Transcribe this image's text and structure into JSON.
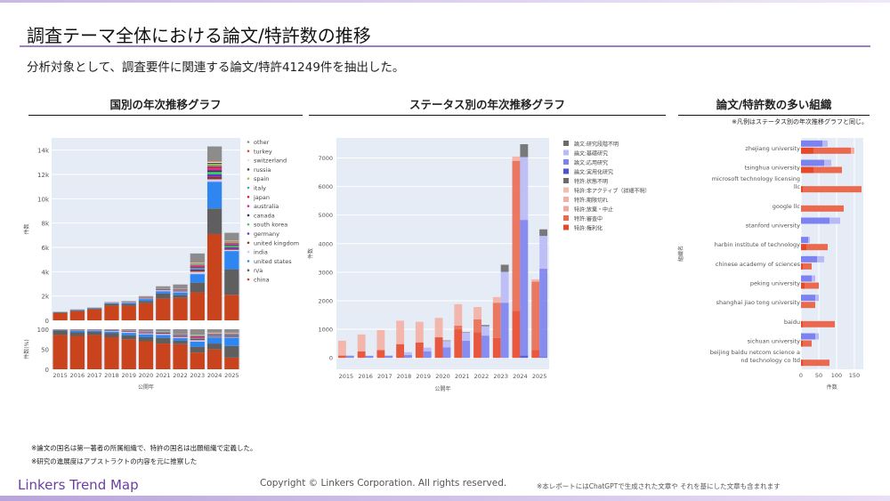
{
  "header": {
    "title": "調査テーマ全体における論文/特許数の推移",
    "subtitle": "分析対象として、調査要件に関連する論文/特許41249件を抽出した。"
  },
  "sections": {
    "country": "国別の年次推移グラフ",
    "status": "ステータス別の年次推移グラフ",
    "org": "論文/特許数の多い組織",
    "org_note": "※凡例はステータス別の年次推移グラフと同じ。"
  },
  "footnotes": [
    "※論文の国名は第一著者の所属組織で、特許の国名は出願組織で定義した。",
    "※研究の進展度はアブストラクトの内容を元に推察した"
  ],
  "footer": {
    "logo": "Linkers Trend Map",
    "copyright": "Copyright © Linkers Corporation. All rights reserved.",
    "ai_note": "※本レポートにはChatGPTで生成された文章や それを基にした文章も含まれます"
  },
  "chart_data": [
    {
      "type": "bar",
      "stacked": true,
      "xlabel": "公開年",
      "ylabel": "件数",
      "ylabel_pct": "件数(%)",
      "ylim": [
        0,
        15000
      ],
      "yticks": [
        0,
        2000,
        4000,
        6000,
        8000,
        10000,
        12000,
        14000
      ],
      "ytick_labels": [
        "0",
        "2k",
        "4k",
        "6k",
        "8k",
        "10k",
        "12k",
        "14k"
      ],
      "pct_ticks": [
        "0",
        "50",
        "100"
      ],
      "legend_position": "right",
      "grid": true,
      "categories": [
        "2015",
        "2016",
        "2017",
        "2018",
        "2019",
        "2020",
        "2021",
        "2022",
        "2023",
        "2024",
        "2025"
      ],
      "series": [
        {
          "name": "china",
          "color": "#c9441c",
          "values": [
            600,
            750,
            900,
            1200,
            1200,
            1400,
            1800,
            1850,
            2300,
            7100,
            2100
          ]
        },
        {
          "name": "n/a",
          "color": "#5f5f5f",
          "values": [
            80,
            80,
            80,
            150,
            150,
            200,
            400,
            250,
            800,
            2100,
            2100
          ]
        },
        {
          "name": "united states",
          "color": "#2f86f0",
          "values": [
            10,
            30,
            30,
            60,
            100,
            150,
            200,
            200,
            700,
            2200,
            1500
          ]
        },
        {
          "name": "india",
          "color": "#d8c7f0",
          "values": [
            5,
            5,
            5,
            20,
            40,
            50,
            80,
            80,
            200,
            200,
            100
          ]
        },
        {
          "name": "united kingdom",
          "color": "#8a3a1a",
          "values": [
            5,
            5,
            5,
            10,
            20,
            30,
            40,
            50,
            100,
            200,
            100
          ]
        },
        {
          "name": "germany",
          "color": "#6a2fd0",
          "values": [
            0,
            5,
            5,
            10,
            10,
            20,
            30,
            40,
            100,
            200,
            100
          ]
        },
        {
          "name": "south korea",
          "color": "#3ccf5a",
          "values": [
            0,
            0,
            0,
            0,
            10,
            10,
            20,
            30,
            100,
            200,
            120
          ]
        },
        {
          "name": "canada",
          "color": "#333366",
          "values": [
            0,
            0,
            0,
            0,
            5,
            10,
            10,
            20,
            60,
            150,
            80
          ]
        },
        {
          "name": "australia",
          "color": "#e020a0",
          "values": [
            0,
            0,
            0,
            0,
            5,
            10,
            10,
            20,
            100,
            150,
            80
          ]
        },
        {
          "name": "japan",
          "color": "#e01830",
          "values": [
            0,
            0,
            0,
            0,
            5,
            10,
            10,
            20,
            60,
            150,
            70
          ]
        },
        {
          "name": "italy",
          "color": "#5aa090",
          "values": [
            0,
            0,
            0,
            0,
            5,
            5,
            10,
            10,
            60,
            120,
            60
          ]
        },
        {
          "name": "spain",
          "color": "#a8c050",
          "values": [
            0,
            0,
            0,
            0,
            0,
            5,
            10,
            10,
            50,
            100,
            50
          ]
        },
        {
          "name": "russia",
          "color": "#444444",
          "values": [
            0,
            0,
            0,
            0,
            0,
            5,
            10,
            10,
            40,
            80,
            40
          ]
        },
        {
          "name": "switzerland",
          "color": "#ece4c8",
          "values": [
            0,
            0,
            0,
            0,
            5,
            5,
            10,
            10,
            60,
            100,
            50
          ]
        },
        {
          "name": "turkey",
          "color": "#d05020",
          "values": [
            0,
            0,
            0,
            0,
            0,
            5,
            10,
            10,
            30,
            50,
            30
          ]
        },
        {
          "name": "other",
          "color": "#8c8c8c",
          "values": [
            0,
            25,
            25,
            50,
            40,
            85,
            150,
            340,
            740,
            1200,
            620
          ]
        }
      ]
    },
    {
      "type": "bar",
      "stacked": true,
      "grouped": true,
      "xlabel": "公開年",
      "ylabel": "件数",
      "ylim": [
        -400,
        7700
      ],
      "yticks": [
        0,
        1000,
        2000,
        3000,
        4000,
        5000,
        6000,
        7000
      ],
      "legend_position": "right",
      "grid": true,
      "categories": [
        "2015",
        "2016",
        "2017",
        "2018",
        "2019",
        "2020",
        "2021",
        "2022",
        "2023",
        "2024",
        "2025"
      ],
      "groups": [
        {
          "group": "特許",
          "series": [
            {
              "name": "特許:権利化",
              "color": "#e8482a",
              "values": [
                80,
                230,
                270,
                480,
                540,
                720,
                1000,
                900,
                700,
                1650,
                280
              ]
            },
            {
              "name": "特許:審査中",
              "color": "#ea6a50",
              "values": [
                0,
                0,
                0,
                0,
                0,
                0,
                130,
                450,
                1230,
                5250,
                2390
              ]
            },
            {
              "name": "特許:放棄・中止",
              "color": "#f2a8a0",
              "values": [
                0,
                0,
                0,
                0,
                0,
                0,
                0,
                0,
                0,
                0,
                0
              ]
            },
            {
              "name": "特許:期限切れ",
              "color": "#f4b0a4",
              "values": [
                520,
                590,
                700,
                820,
                720,
                680,
                750,
                430,
                200,
                150,
                80
              ]
            },
            {
              "name": "特許:非アクティブ（詳細不明）",
              "color": "#f6bcb4",
              "values": [
                0,
                0,
                0,
                0,
                0,
                0,
                0,
                0,
                0,
                0,
                0
              ]
            },
            {
              "name": "特許:状態不明",
              "color": "#6b6b6b",
              "values": [
                0,
                0,
                0,
                0,
                0,
                0,
                0,
                0,
                0,
                0,
                0
              ]
            }
          ]
        },
        {
          "group": "論文",
          "series": [
            {
              "name": "論文:実用化研究",
              "color": "#4a52d8",
              "values": [
                0,
                0,
                0,
                0,
                0,
                0,
                0,
                0,
                0,
                80,
                30
              ]
            },
            {
              "name": "論文:応用研究",
              "color": "#7c82f0",
              "values": [
                70,
                70,
                70,
                100,
                230,
                370,
                600,
                780,
                1930,
                4750,
                3090
              ]
            },
            {
              "name": "論文:基礎研究",
              "color": "#b8baf6",
              "values": [
                20,
                10,
                20,
                100,
                130,
                220,
                280,
                330,
                1080,
                2200,
                1150
              ]
            },
            {
              "name": "論文:研究段階不明",
              "color": "#6b6b6b",
              "values": [
                0,
                0,
                0,
                0,
                0,
                20,
                20,
                40,
                250,
                450,
                230
              ]
            }
          ]
        }
      ],
      "legend": [
        "論文:研究段階不明",
        "論文:基礎研究",
        "論文:応用研究",
        "論文:実用化研究",
        "特許:状態不明",
        "特許:非アクティブ（詳細不明）",
        "特許:期限切れ",
        "特許:放棄・中止",
        "特許:審査中",
        "特許:権利化"
      ]
    },
    {
      "type": "bar",
      "orientation": "horizontal",
      "stacked": true,
      "xlabel": "件数",
      "ylabel": "組織名",
      "xlim": [
        0,
        175
      ],
      "xticks": [
        0,
        50,
        100,
        150
      ],
      "categories": [
        "zhejiang university",
        "tsinghua university",
        "microsoft technology licensing llc",
        "google llc",
        "stanford university",
        "harbin institute of technology",
        "chinese academy of sciences",
        "peking university",
        "shanghai jiao tong university",
        "baidu",
        "sichuan university",
        "beijing baidu netcom science and technology co ltd"
      ],
      "category_lines": [
        [
          "zhejiang university"
        ],
        [
          "tsinghua university"
        ],
        [
          "microsoft technology licensing",
          "llc"
        ],
        [
          "google llc"
        ],
        [
          "stanford university"
        ],
        [
          "harbin institute of technology"
        ],
        [
          "chinese academy of sciences"
        ],
        [
          "peking university"
        ],
        [
          "shanghai jiao tong university"
        ],
        [
          "baidu"
        ],
        [
          "sichuan university"
        ],
        [
          "beijing baidu netcom science a",
          "nd technology co ltd"
        ]
      ],
      "paper": {
        "応用研究": [
          60,
          65,
          0,
          0,
          80,
          20,
          45,
          30,
          40,
          0,
          40,
          0
        ],
        "基礎研究": [
          15,
          20,
          0,
          0,
          30,
          5,
          20,
          10,
          10,
          0,
          10,
          0
        ]
      },
      "patent": {
        "権利化": [
          35,
          35,
          5,
          0,
          0,
          15,
          5,
          10,
          0,
          5,
          5,
          5
        ],
        "審査中": [
          105,
          80,
          165,
          120,
          0,
          60,
          25,
          40,
          40,
          90,
          25,
          75
        ],
        "期限切れ": [
          10,
          0,
          0,
          0,
          0,
          0,
          0,
          0,
          0,
          0,
          0,
          0
        ]
      }
    }
  ]
}
